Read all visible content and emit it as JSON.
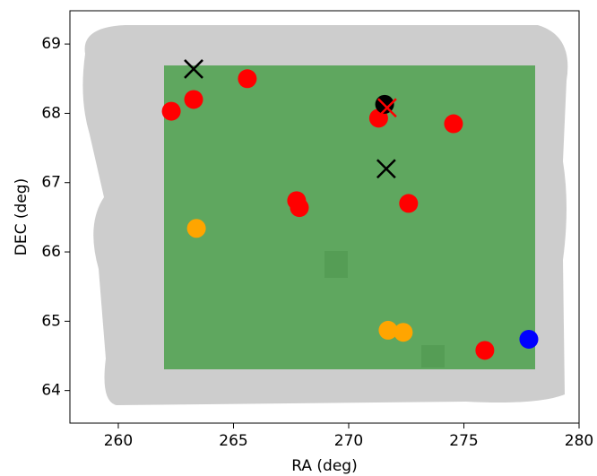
{
  "chart_data": {
    "type": "scatter",
    "xlabel": "RA (deg)",
    "ylabel": "DEC (deg)",
    "xlim": [
      257.9,
      280
    ],
    "ylim": [
      63.53,
      69.48
    ],
    "xticks": [
      260,
      265,
      270,
      275,
      280
    ],
    "yticks": [
      64,
      65,
      66,
      67,
      68,
      69
    ],
    "series": [
      {
        "color": "#ff0000",
        "marker": "o",
        "x": [
          263.27,
          262.3,
          265.6,
          271.3,
          274.55,
          267.74,
          267.86,
          272.6,
          275.91
        ],
        "y": [
          68.2,
          68.03,
          68.5,
          67.93,
          67.85,
          66.74,
          66.64,
          66.7,
          64.58
        ]
      },
      {
        "color": "#ffa500",
        "marker": "o",
        "x": [
          263.39,
          271.71,
          272.37
        ],
        "y": [
          66.34,
          64.87,
          64.84
        ]
      },
      {
        "color": "#0000ff",
        "marker": "o",
        "x": [
          277.82
        ],
        "y": [
          64.74
        ]
      },
      {
        "color": "#000000",
        "marker": "o",
        "x": [
          271.56
        ],
        "y": [
          68.13
        ]
      },
      {
        "color": "#000000",
        "marker": "x",
        "x": [
          263.27,
          271.63
        ],
        "y": [
          68.64,
          67.2
        ]
      },
      {
        "color": "#ff0000",
        "marker": "x",
        "x": [
          271.67
        ],
        "y": [
          68.08
        ]
      }
    ]
  }
}
